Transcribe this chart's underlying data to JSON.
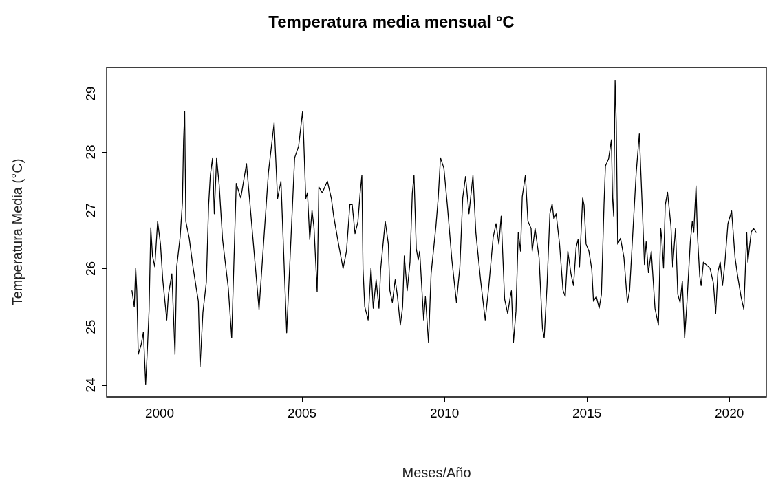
{
  "chart_data": {
    "type": "line",
    "title": "Temperatura media mensual °C",
    "xlabel": "Meses/Año",
    "ylabel": "Temperatura Media (°C)",
    "x": [
      1999.03,
      1999.11,
      1999.16,
      1999.2,
      1999.25,
      1999.35,
      1999.43,
      1999.51,
      1999.57,
      1999.63,
      1999.69,
      1999.75,
      1999.83,
      1999.93,
      2000.03,
      2000.11,
      2000.25,
      2000.31,
      2000.43,
      2000.54,
      2000.6,
      2000.72,
      2000.8,
      2000.84,
      2000.88,
      2000.92,
      2001.04,
      2001.16,
      2001.3,
      2001.36,
      2001.42,
      2001.52,
      2001.64,
      2001.72,
      2001.78,
      2001.86,
      2001.92,
      2002.0,
      2002.09,
      2002.21,
      2002.41,
      2002.53,
      2002.61,
      2002.69,
      2002.85,
      2003.05,
      2003.49,
      2003.82,
      2004.02,
      2004.14,
      2004.26,
      2004.46,
      2004.74,
      2004.88,
      2005.02,
      2005.06,
      2005.13,
      2005.19,
      2005.27,
      2005.35,
      2005.42,
      2005.53,
      2005.59,
      2005.71,
      2005.89,
      2006.03,
      2006.11,
      2006.27,
      2006.44,
      2006.56,
      2006.68,
      2006.76,
      2006.86,
      2006.96,
      2007.04,
      2007.1,
      2007.14,
      2007.2,
      2007.32,
      2007.42,
      2007.5,
      2007.6,
      2007.7,
      2007.76,
      2007.92,
      2008.03,
      2008.08,
      2008.17,
      2008.27,
      2008.35,
      2008.45,
      2008.53,
      2008.59,
      2008.69,
      2008.79,
      2008.87,
      2008.93,
      2009.01,
      2009.08,
      2009.13,
      2009.21,
      2009.27,
      2009.33,
      2009.44,
      2009.53,
      2009.7,
      2009.78,
      2009.86,
      2009.98,
      2010.1,
      2010.26,
      2010.42,
      2010.54,
      2010.64,
      2010.74,
      2010.86,
      2011.0,
      2011.1,
      2011.27,
      2011.43,
      2011.55,
      2011.71,
      2011.81,
      2011.91,
      2011.99,
      2012.11,
      2012.22,
      2012.31,
      2012.35,
      2012.42,
      2012.51,
      2012.59,
      2012.67,
      2012.73,
      2012.84,
      2012.93,
      2013.04,
      2013.08,
      2013.18,
      2013.32,
      2013.44,
      2013.5,
      2013.6,
      2013.7,
      2013.78,
      2013.84,
      2013.92,
      2014.04,
      2014.16,
      2014.24,
      2014.33,
      2014.44,
      2014.53,
      2014.62,
      2014.69,
      2014.74,
      2014.85,
      2014.9,
      2014.97,
      2015.07,
      2015.17,
      2015.23,
      2015.33,
      2015.43,
      2015.51,
      2015.6,
      2015.65,
      2015.76,
      2015.86,
      2015.9,
      2015.94,
      2015.99,
      2016.03,
      2016.08,
      2016.18,
      2016.3,
      2016.42,
      2016.5,
      2016.62,
      2016.73,
      2016.84,
      2016.94,
      2017.02,
      2017.08,
      2017.16,
      2017.26,
      2017.39,
      2017.51,
      2017.59,
      2017.63,
      2017.69,
      2017.75,
      2017.83,
      2017.95,
      2018.01,
      2018.11,
      2018.19,
      2018.27,
      2018.35,
      2018.43,
      2018.51,
      2018.63,
      2018.7,
      2018.75,
      2018.83,
      2018.88,
      2018.96,
      2019.01,
      2019.09,
      2019.32,
      2019.44,
      2019.52,
      2019.6,
      2019.68,
      2019.76,
      2019.84,
      2019.95,
      2020.08,
      2020.2,
      2020.28,
      2020.41,
      2020.51,
      2020.61,
      2020.65,
      2020.7,
      2020.77,
      2020.85,
      2020.94
    ],
    "series": [
      {
        "color": "#000000",
        "values": [
          25.62,
          25.34,
          26.01,
          25.62,
          24.53,
          24.69,
          24.91,
          24.02,
          24.61,
          25.28,
          26.7,
          26.22,
          26.03,
          26.81,
          26.42,
          25.81,
          25.12,
          25.56,
          25.91,
          24.53,
          26.03,
          26.54,
          27.13,
          28.19,
          28.7,
          26.81,
          26.52,
          26.07,
          25.62,
          25.44,
          24.32,
          25.25,
          25.77,
          27.09,
          27.6,
          27.9,
          26.94,
          27.9,
          27.44,
          26.5,
          25.67,
          24.81,
          26.15,
          27.46,
          27.21,
          27.8,
          25.3,
          27.65,
          28.5,
          27.2,
          27.5,
          24.9,
          27.9,
          28.1,
          28.7,
          28.2,
          27.2,
          27.3,
          26.5,
          27.0,
          26.7,
          25.6,
          27.4,
          27.3,
          27.5,
          27.2,
          26.9,
          26.45,
          26.0,
          26.3,
          27.1,
          27.1,
          26.6,
          26.8,
          27.3,
          27.6,
          26.0,
          25.35,
          25.12,
          26.01,
          25.32,
          25.81,
          25.32,
          25.99,
          26.81,
          26.42,
          25.63,
          25.42,
          25.81,
          25.52,
          25.03,
          25.34,
          26.22,
          25.62,
          26.11,
          27.29,
          27.6,
          26.34,
          26.15,
          26.3,
          25.62,
          25.12,
          25.52,
          24.73,
          25.91,
          26.73,
          27.21,
          27.9,
          27.72,
          27.09,
          26.15,
          25.42,
          26.03,
          27.21,
          27.58,
          26.94,
          27.6,
          26.62,
          25.79,
          25.12,
          25.67,
          26.54,
          26.77,
          26.42,
          26.9,
          25.48,
          25.23,
          25.52,
          25.62,
          24.73,
          25.27,
          26.62,
          26.3,
          27.23,
          27.6,
          26.81,
          26.69,
          26.3,
          26.69,
          26.19,
          24.97,
          24.81,
          25.71,
          26.94,
          27.11,
          26.85,
          26.94,
          26.42,
          25.63,
          25.52,
          26.3,
          25.91,
          25.71,
          26.36,
          26.5,
          26.03,
          27.21,
          27.09,
          26.42,
          26.3,
          25.99,
          25.44,
          25.52,
          25.32,
          25.56,
          27.09,
          27.76,
          27.88,
          28.21,
          27.21,
          26.9,
          29.22,
          28.51,
          26.42,
          26.52,
          26.19,
          25.42,
          25.63,
          26.69,
          27.64,
          28.31,
          27.09,
          26.07,
          26.46,
          25.93,
          26.3,
          25.32,
          25.03,
          26.69,
          26.5,
          26.01,
          27.09,
          27.31,
          26.73,
          26.03,
          26.69,
          25.56,
          25.42,
          25.79,
          24.81,
          25.4,
          26.46,
          26.81,
          26.62,
          27.42,
          26.58,
          25.87,
          25.71,
          26.11,
          26.01,
          25.75,
          25.23,
          25.95,
          26.11,
          25.71,
          26.07,
          26.77,
          26.99,
          26.19,
          25.91,
          25.52,
          25.3,
          26.62,
          26.11,
          26.34,
          26.63,
          26.69,
          26.62
        ]
      }
    ],
    "xlim": [
      1998.14,
      2021.3
    ],
    "ylim": [
      23.8,
      29.45
    ],
    "xticks": [
      2000,
      2005,
      2010,
      2015,
      2020
    ],
    "yticks": [
      24,
      25,
      26,
      27,
      28,
      29
    ],
    "marker": "none",
    "line_style": "solid"
  }
}
